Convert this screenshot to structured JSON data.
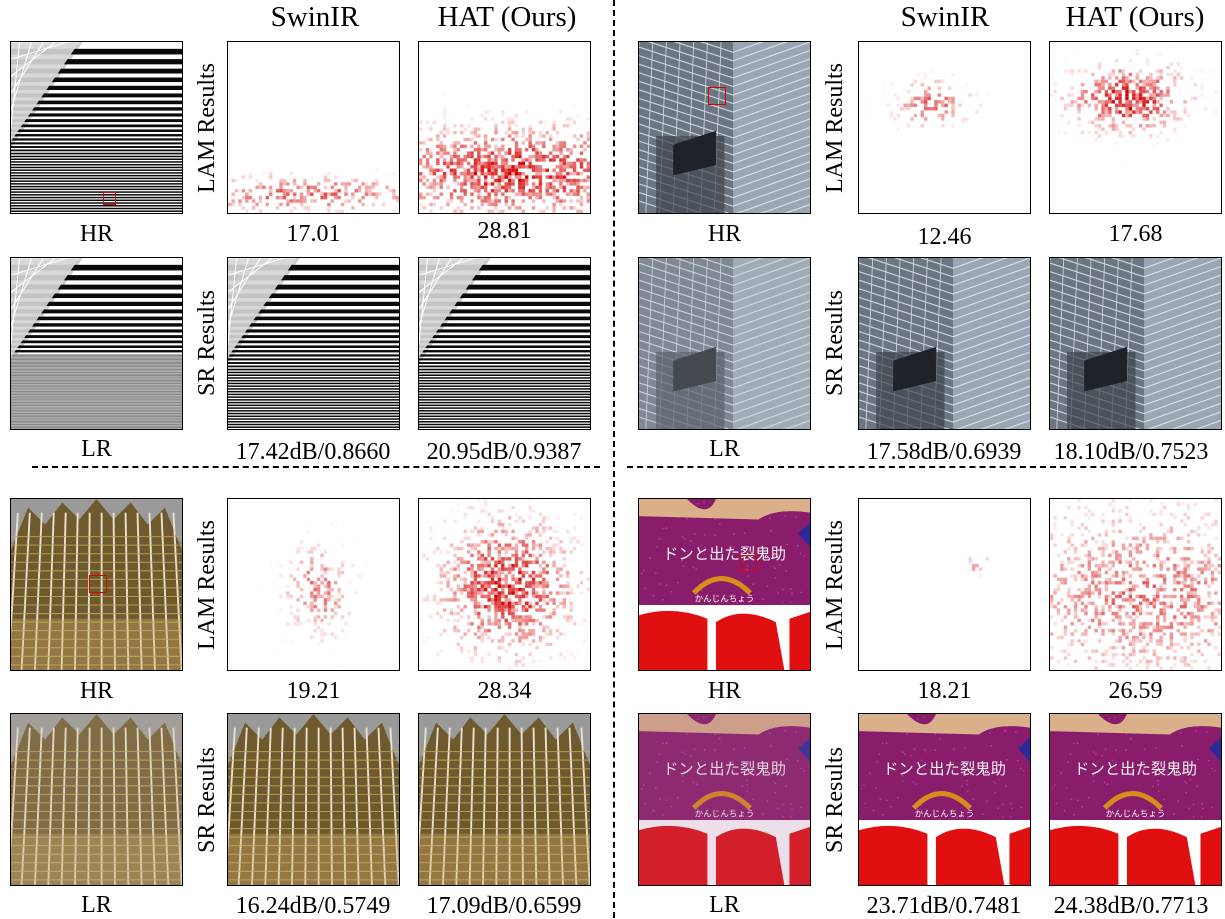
{
  "headers": {
    "tl_swinir": "SwinIR",
    "tl_hat": "HAT (Ours)",
    "tr_swinir": "SwinIR",
    "tr_hat": "HAT (Ours)"
  },
  "row_labels": {
    "lam": "LAM Results",
    "sr": "SR Results"
  },
  "quadrants": {
    "tl": {
      "hr_label": "HR",
      "lr_label": "LR",
      "lam_swinir": "17.01",
      "lam_hat": "28.81",
      "sr_swinir": "17.42dB/0.8660",
      "sr_hat": "20.95dB/0.9387"
    },
    "tr": {
      "hr_label": "HR",
      "lr_label": "LR",
      "lam_swinir": "12.46",
      "lam_hat": "17.68",
      "sr_swinir": "17.58dB/0.6939",
      "sr_hat": "18.10dB/0.7523"
    },
    "bl": {
      "hr_label": "HR",
      "lr_label": "LR",
      "lam_swinir": "19.21",
      "lam_hat": "28.34",
      "sr_swinir": "16.24dB/0.5749",
      "sr_hat": "17.09dB/0.6599"
    },
    "br": {
      "hr_label": "HR",
      "lr_label": "LR",
      "lam_swinir": "18.21",
      "lam_hat": "26.59",
      "sr_swinir": "23.71dB/0.7481",
      "sr_hat": "24.38dB/0.7713"
    }
  },
  "image_text": {
    "sign_title": "ドンと出た裂鬼助",
    "sign_sub": "かんじんちょう"
  },
  "colors": {
    "roi": "#e00000",
    "heat": "#d40000",
    "sign_bg": "#8a1d6b",
    "sign_red": "#e01010"
  }
}
